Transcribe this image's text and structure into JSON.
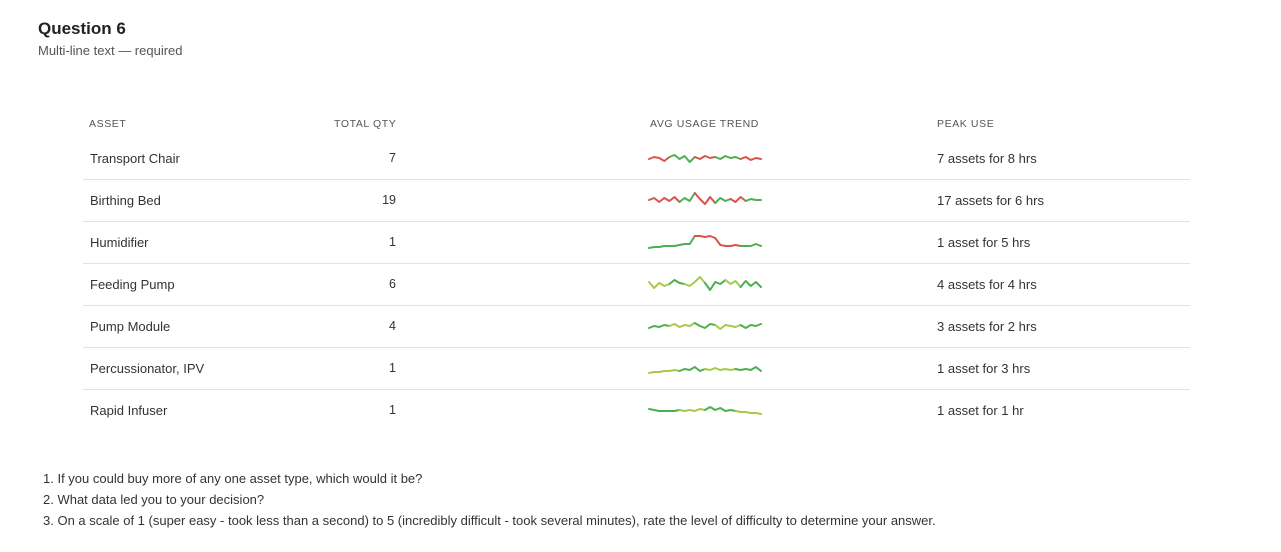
{
  "question": {
    "title": "Question 6",
    "subtitle": "Multi-line text — required"
  },
  "table": {
    "headers": {
      "asset": "ASSET",
      "total_qty": "TOTAL QTY",
      "avg_usage_trend": "AVG USAGE TREND",
      "peak_use": "PEAK USE"
    },
    "rows": [
      {
        "asset": "Transport Chair",
        "total_qty": "7",
        "peak_use": "7 assets for 8 hrs",
        "trend": [
          0.45,
          0.55,
          0.5,
          0.35,
          0.55,
          0.65,
          0.45,
          0.6,
          0.3,
          0.55,
          0.45,
          0.6,
          0.5,
          0.55,
          0.45,
          0.6,
          0.5,
          0.55,
          0.45,
          0.55,
          0.4,
          0.5,
          0.45
        ],
        "trend_colors": [
          "#d9534f",
          "#4caf50",
          "#d9534f",
          "#4caf50",
          "#d9534f"
        ]
      },
      {
        "asset": "Birthing Bed",
        "total_qty": "19",
        "peak_use": "17 assets for 6 hrs",
        "trend": [
          0.5,
          0.6,
          0.4,
          0.6,
          0.45,
          0.65,
          0.4,
          0.6,
          0.45,
          0.85,
          0.55,
          0.3,
          0.65,
          0.35,
          0.6,
          0.45,
          0.55,
          0.4,
          0.65,
          0.45,
          0.55,
          0.5,
          0.5
        ],
        "trend_colors": [
          "#d9534f",
          "#d9534f",
          "#4caf50",
          "#d9534f",
          "#4caf50",
          "#d9534f",
          "#4caf50"
        ]
      },
      {
        "asset": "Humidifier",
        "total_qty": "1",
        "peak_use": "1 asset for 5 hrs",
        "trend": [
          0.2,
          0.25,
          0.25,
          0.3,
          0.3,
          0.3,
          0.35,
          0.4,
          0.4,
          0.8,
          0.8,
          0.75,
          0.8,
          0.7,
          0.35,
          0.3,
          0.3,
          0.35,
          0.3,
          0.3,
          0.3,
          0.4,
          0.3
        ],
        "trend_colors": [
          "#4caf50",
          "#4caf50",
          "#d9534f",
          "#d9534f",
          "#4caf50"
        ]
      },
      {
        "asset": "Feeding Pump",
        "total_qty": "6",
        "peak_use": "4 assets for 4 hrs",
        "trend": [
          0.6,
          0.3,
          0.55,
          0.4,
          0.5,
          0.7,
          0.55,
          0.5,
          0.4,
          0.6,
          0.85,
          0.55,
          0.2,
          0.6,
          0.5,
          0.7,
          0.5,
          0.65,
          0.35,
          0.65,
          0.4,
          0.6,
          0.35
        ],
        "trend_colors": [
          "#a8c94b",
          "#4caf50",
          "#a8c94b",
          "#4caf50",
          "#a8c94b",
          "#4caf50"
        ]
      },
      {
        "asset": "Pump Module",
        "total_qty": "4",
        "peak_use": "3 assets for 2 hrs",
        "trend": [
          0.4,
          0.5,
          0.45,
          0.55,
          0.5,
          0.6,
          0.45,
          0.55,
          0.5,
          0.65,
          0.5,
          0.4,
          0.6,
          0.55,
          0.35,
          0.55,
          0.5,
          0.45,
          0.55,
          0.4,
          0.55,
          0.5,
          0.6
        ],
        "trend_colors": [
          "#4caf50",
          "#a8c94b",
          "#4caf50",
          "#a8c94b",
          "#4caf50"
        ]
      },
      {
        "asset": "Percussionator, IPV",
        "total_qty": "1",
        "peak_use": "1 asset for 3 hrs",
        "trend": [
          0.25,
          0.3,
          0.3,
          0.35,
          0.35,
          0.4,
          0.35,
          0.45,
          0.4,
          0.55,
          0.35,
          0.45,
          0.4,
          0.5,
          0.4,
          0.45,
          0.4,
          0.45,
          0.4,
          0.45,
          0.4,
          0.55,
          0.35
        ],
        "trend_colors": [
          "#a8c94b",
          "#4caf50",
          "#a8c94b",
          "#4caf50"
        ]
      },
      {
        "asset": "Rapid Infuser",
        "total_qty": "1",
        "peak_use": "1 asset for 1 hr",
        "trend": [
          0.55,
          0.5,
          0.45,
          0.45,
          0.45,
          0.45,
          0.5,
          0.45,
          0.5,
          0.45,
          0.55,
          0.5,
          0.65,
          0.5,
          0.6,
          0.45,
          0.5,
          0.45,
          0.4,
          0.4,
          0.35,
          0.35,
          0.3
        ],
        "trend_colors": [
          "#4caf50",
          "#a8c94b",
          "#4caf50",
          "#a8c94b"
        ]
      }
    ]
  },
  "questions": [
    "1. If you could buy more of any one asset type, which would it be?",
    "2. What data led you to your decision?",
    "3. On a scale of 1 (super easy - took less than a second) to 5 (incredibly difficult - took several minutes), rate the level of difficulty to determine your answer."
  ]
}
